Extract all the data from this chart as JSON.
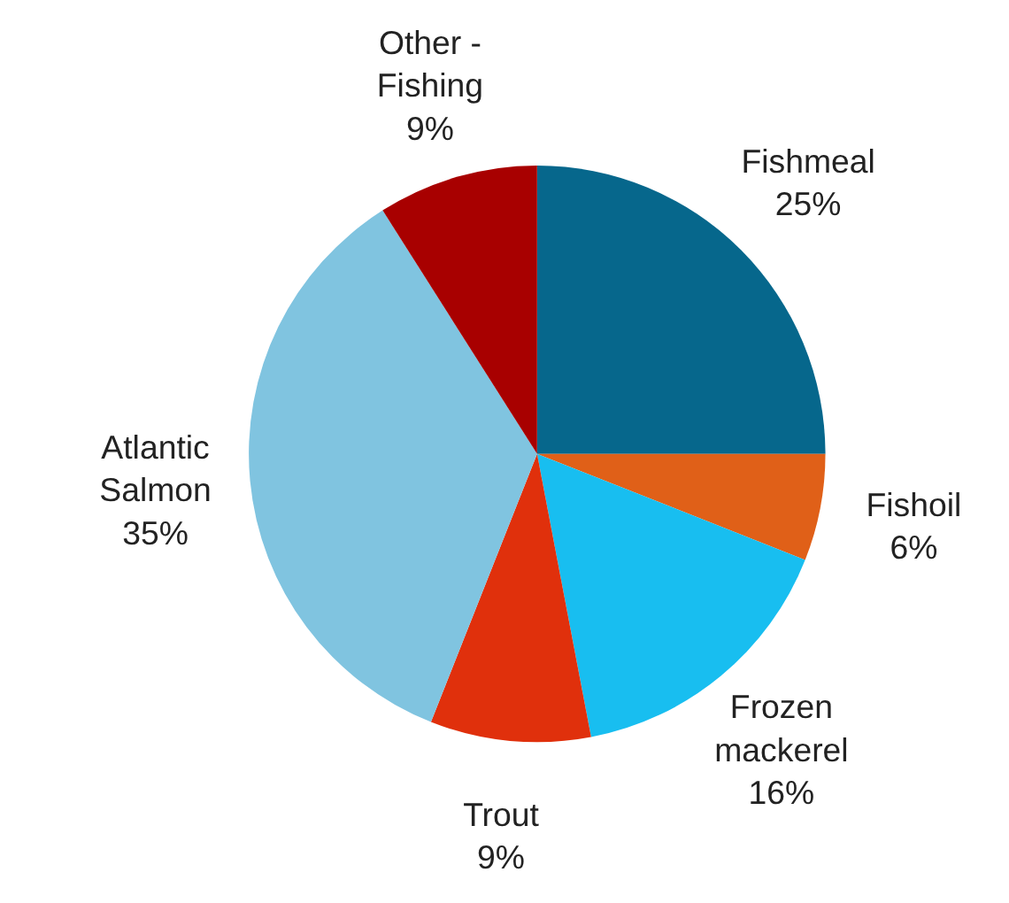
{
  "chart_data": {
    "type": "pie",
    "categories": [
      "Fishmeal",
      "Fishoil",
      "Frozen mackerel",
      "Trout",
      "Atlantic Salmon",
      "Other - Fishing"
    ],
    "values": [
      25,
      6,
      16,
      9,
      35,
      9
    ],
    "colors": [
      "#06678c",
      "#e06018",
      "#18bef0",
      "#e0300c",
      "#80c4e0",
      "#a80000"
    ],
    "value_labels": [
      "25%",
      "6%",
      "16%",
      "9%",
      "35%",
      "9%"
    ]
  }
}
